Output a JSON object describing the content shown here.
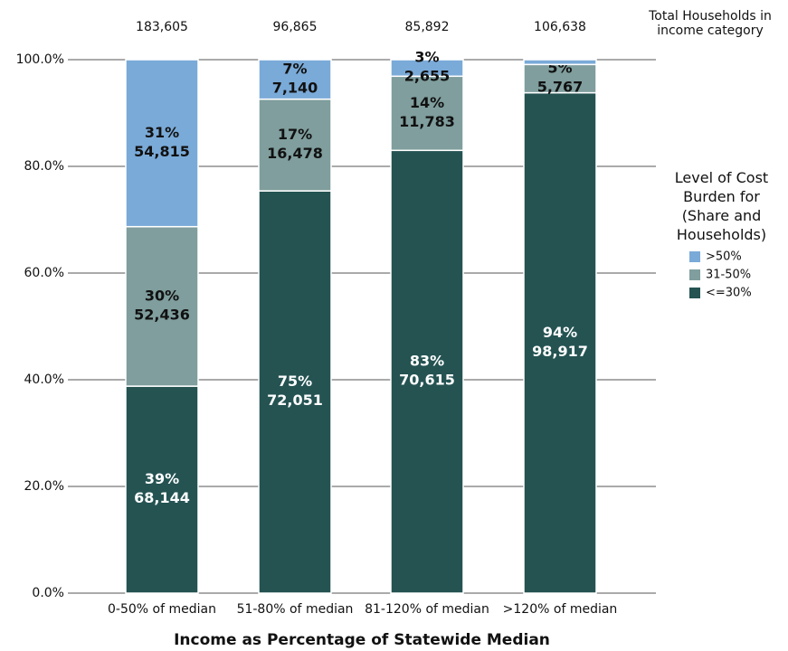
{
  "chart_data": {
    "type": "stacked_bar",
    "x_label": "Income as Percentage of Statewide Median",
    "totals_label": "Total Households in income category",
    "legend_title": "Level of Cost Burden for (Share and Households)",
    "legend_position": "right",
    "categories": [
      "0-50%  of median",
      "51-80% of median",
      "81-120% of median",
      ">120% of median"
    ],
    "totals": [
      {
        "value": 183605,
        "label": "183,605"
      },
      {
        "value": 96865,
        "label": "96,865"
      },
      {
        "value": 85892,
        "label": "85,892"
      },
      {
        "value": 106638,
        "label": "106,638"
      }
    ],
    "series": [
      {
        "name": ">50%",
        "color": "#7aaad8",
        "label_color": "#111111",
        "values": [
          31.3,
          7.4,
          3.1,
          0.9
        ],
        "value_labels": [
          "31%",
          "7%",
          "3%",
          null
        ],
        "households": [
          {
            "value": 54815,
            "label": "54,815"
          },
          {
            "value": 7140,
            "label": "7,140"
          },
          {
            "value": 2655,
            "label": "2,655"
          },
          null
        ]
      },
      {
        "name": "31-50%",
        "color": "#7f9e9d",
        "label_color": "#111111",
        "values": [
          29.9,
          17.2,
          13.9,
          5.3
        ],
        "value_labels": [
          "30%",
          "17%",
          "14%",
          "5%"
        ],
        "households": [
          {
            "value": 52436,
            "label": "52,436"
          },
          {
            "value": 16478,
            "label": "16,478"
          },
          {
            "value": 11783,
            "label": "11,783"
          },
          {
            "value": 5767,
            "label": "5,767"
          }
        ]
      },
      {
        "name": "<=30%",
        "color": "#245352",
        "label_color": "#ffffff",
        "values": [
          38.8,
          75.4,
          83,
          93.8
        ],
        "value_labels": [
          "39%",
          "75%",
          "83%",
          "94%"
        ],
        "households": [
          {
            "value": 68144,
            "label": "68,144"
          },
          {
            "value": 72051,
            "label": "72,051"
          },
          {
            "value": 70615,
            "label": "70,615"
          },
          {
            "value": 98917,
            "label": "98,917"
          }
        ]
      }
    ],
    "ylim": [
      0,
      100
    ],
    "yticks": [
      {
        "value": 0,
        "label": "0.0%"
      },
      {
        "value": 20,
        "label": "20.0%"
      },
      {
        "value": 40,
        "label": "40.0%"
      },
      {
        "value": 60,
        "label": "60.0%"
      },
      {
        "value": 80,
        "label": "80.0%"
      },
      {
        "value": 100,
        "label": "100.0%"
      }
    ],
    "grid": true
  }
}
